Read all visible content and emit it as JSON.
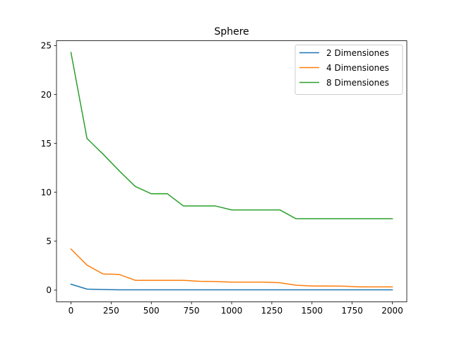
{
  "chart_data": {
    "type": "line",
    "title": "Sphere",
    "xlabel": "",
    "ylabel": "",
    "xlim": [
      -90,
      2090
    ],
    "ylim": [
      -1.2,
      25.5
    ],
    "xticks": [
      0,
      250,
      500,
      750,
      1000,
      1250,
      1500,
      1750,
      2000
    ],
    "yticks": [
      0,
      5,
      10,
      15,
      20,
      25
    ],
    "grid": false,
    "legend_position": "top-right",
    "x": [
      0,
      100,
      200,
      300,
      400,
      500,
      600,
      700,
      800,
      900,
      1000,
      1100,
      1200,
      1300,
      1400,
      1500,
      1600,
      1700,
      1800,
      1900,
      2000
    ],
    "series": [
      {
        "name": "2 Dimensiones",
        "color": "#1f77b4",
        "values": [
          0.6,
          0.1,
          0.06,
          0.03,
          0.03,
          0.03,
          0.03,
          0.03,
          0.03,
          0.03,
          0.03,
          0.03,
          0.03,
          0.03,
          0.03,
          0.03,
          0.03,
          0.03,
          0.03,
          0.03,
          0.03
        ]
      },
      {
        "name": "4 Dimensiones",
        "color": "#ff7f0e",
        "values": [
          4.2,
          2.55,
          1.65,
          1.6,
          1.0,
          1.0,
          1.0,
          1.0,
          0.9,
          0.88,
          0.82,
          0.82,
          0.82,
          0.75,
          0.5,
          0.42,
          0.42,
          0.4,
          0.33,
          0.33,
          0.33
        ]
      },
      {
        "name": "8 Dimensiones",
        "color": "#2ca02c",
        "values": [
          24.3,
          15.5,
          13.9,
          12.2,
          10.6,
          9.85,
          9.85,
          8.6,
          8.6,
          8.6,
          8.2,
          8.2,
          8.2,
          8.2,
          7.3,
          7.3,
          7.3,
          7.3,
          7.3,
          7.3,
          7.3
        ]
      }
    ]
  }
}
